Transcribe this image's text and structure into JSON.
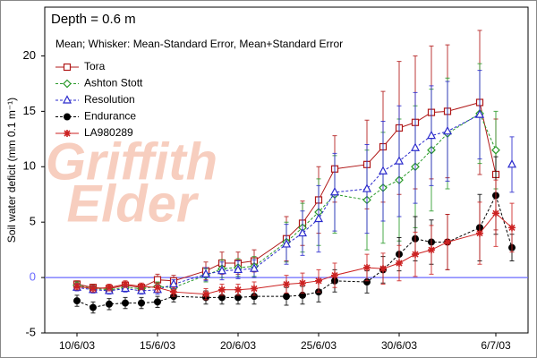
{
  "chart_data": {
    "type": "line",
    "title": "Depth = 0.6 m",
    "subtitle": "Mean;  Whisker: Mean-Standard Error, Mean+Standard Error",
    "y_label": "Soil water deficit (mm 0.1 m⁻¹)",
    "watermark": [
      "Griffith",
      "Elder"
    ],
    "x": [
      "2003-06-10",
      "2003-06-11",
      "2003-06-12",
      "2003-06-13",
      "2003-06-14",
      "2003-06-15",
      "2003-06-16",
      "2003-06-18",
      "2003-06-19",
      "2003-06-20",
      "2003-06-21",
      "2003-06-23",
      "2003-06-24",
      "2003-06-25",
      "2003-06-26",
      "2003-06-28",
      "2003-06-29",
      "2003-06-30",
      "2003-07-01",
      "2003-07-02",
      "2003-07-03",
      "2003-07-05",
      "2003-07-06",
      "2003-07-07"
    ],
    "xlim": [
      "2003-06-08",
      "2003-07-08"
    ],
    "xticks": [
      {
        "value": "2003-06-10",
        "label": "10/6/03"
      },
      {
        "value": "2003-06-15",
        "label": "15/6/03"
      },
      {
        "value": "2003-06-20",
        "label": "20/6/03"
      },
      {
        "value": "2003-06-25",
        "label": "25/6/03"
      },
      {
        "value": "2003-06-30",
        "label": "30/6/03"
      },
      {
        "value": "2003-07-06",
        "label": "6/7/03"
      }
    ],
    "ylim": [
      -5,
      24.4
    ],
    "yticks": [
      -5,
      0,
      5,
      10,
      15,
      20
    ],
    "zero_line_color": "#6a6aff",
    "legend": "upper-left",
    "series": [
      {
        "name": "Tora",
        "color": "#b01818",
        "marker": "square",
        "dash": false,
        "values": [
          -0.6,
          -0.9,
          -1.0,
          -0.7,
          -0.9,
          -0.2,
          -0.3,
          0.6,
          1.3,
          1.3,
          1.5,
          3.5,
          4.9,
          7.0,
          9.8,
          10.2,
          11.8,
          13.5,
          14.0,
          14.9,
          15.0,
          15.8,
          9.3,
          null
        ],
        "errors": [
          0.3,
          0.3,
          0.3,
          0.3,
          0.3,
          0.5,
          0.5,
          0.8,
          1.0,
          1.0,
          1.0,
          2.0,
          2.0,
          3.0,
          3.0,
          4.0,
          5.0,
          6.0,
          6.0,
          6.0,
          6.0,
          6.5,
          5.0,
          null
        ]
      },
      {
        "name": "Ashton Stott",
        "color": "#2a9a2a",
        "marker": "diamond",
        "dash": true,
        "values": [
          -0.7,
          -1.0,
          -1.1,
          -0.9,
          -1.0,
          -0.8,
          -0.9,
          0.2,
          0.8,
          0.9,
          1.0,
          3.2,
          4.5,
          5.9,
          7.5,
          7.0,
          8.1,
          8.8,
          10.0,
          11.5,
          13.0,
          14.8,
          11.5,
          null
        ],
        "errors": [
          0.3,
          0.3,
          0.3,
          0.3,
          0.3,
          0.4,
          0.4,
          0.6,
          0.8,
          0.8,
          0.9,
          1.8,
          2.2,
          3.0,
          3.5,
          4.5,
          5.0,
          5.5,
          5.5,
          5.5,
          5.0,
          4.5,
          3.5,
          null
        ]
      },
      {
        "name": "Resolution",
        "color": "#2a2acc",
        "marker": "triangle",
        "dash": true,
        "values": [
          -0.9,
          -1.1,
          -1.2,
          -1.0,
          -1.2,
          -1.1,
          -0.6,
          0.3,
          0.6,
          0.7,
          0.8,
          3.0,
          4.0,
          5.3,
          7.7,
          8.0,
          9.6,
          10.5,
          11.7,
          12.8,
          13.2,
          14.7,
          null,
          10.2
        ],
        "errors": [
          0.3,
          0.3,
          0.3,
          0.3,
          0.3,
          0.4,
          0.4,
          0.6,
          0.8,
          0.8,
          0.8,
          1.8,
          2.0,
          3.0,
          3.5,
          4.0,
          4.5,
          5.0,
          5.0,
          4.5,
          4.5,
          4.0,
          null,
          2.5
        ]
      },
      {
        "name": "Endurance",
        "color": "#000000",
        "marker": "circle",
        "dash": true,
        "values": [
          -2.1,
          -2.7,
          -2.4,
          -2.3,
          -2.3,
          -2.2,
          -1.7,
          -1.8,
          -1.8,
          -1.8,
          -1.7,
          -1.7,
          -1.6,
          -1.3,
          -0.3,
          -0.4,
          0.7,
          2.1,
          3.5,
          3.2,
          3.2,
          4.5,
          7.4,
          2.7
        ],
        "errors": [
          0.5,
          0.5,
          0.5,
          0.5,
          0.5,
          0.5,
          0.5,
          0.6,
          0.6,
          0.6,
          0.7,
          0.8,
          0.8,
          0.9,
          1.0,
          1.0,
          1.2,
          1.5,
          2.0,
          2.0,
          2.5,
          3.0,
          3.5,
          1.2
        ]
      },
      {
        "name": "LA980289",
        "color": "#cc2222",
        "marker": "star",
        "dash": false,
        "values": [
          -0.8,
          -1.0,
          -0.9,
          -0.6,
          -0.8,
          -0.9,
          -1.3,
          -1.5,
          -1.1,
          -1.1,
          -1.0,
          -0.6,
          -0.5,
          -0.3,
          0.2,
          0.9,
          0.8,
          1.3,
          2.1,
          2.5,
          3.2,
          4.0,
          5.8,
          4.5
        ],
        "errors": [
          0.3,
          0.3,
          0.3,
          0.3,
          0.3,
          0.4,
          0.4,
          0.5,
          0.5,
          0.5,
          0.6,
          0.8,
          0.9,
          1.0,
          1.1,
          1.2,
          1.4,
          1.6,
          2.0,
          2.2,
          2.5,
          2.8,
          3.0,
          2.2
        ]
      }
    ]
  }
}
